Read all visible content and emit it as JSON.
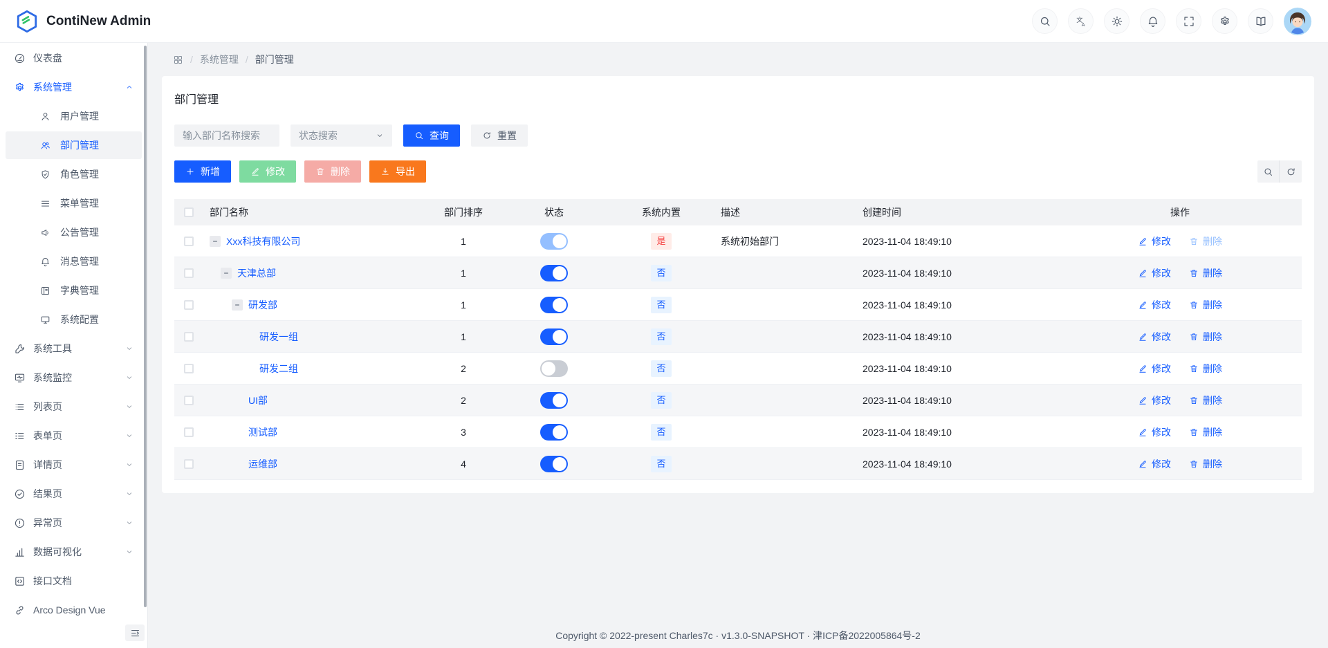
{
  "app": {
    "title": "ContiNew Admin"
  },
  "colors": {
    "primary": "#165dff",
    "primary_light": "#94bfff",
    "success_light": "#7edba0",
    "danger_light": "#f5aba6",
    "orange": "#f9781d",
    "badge_yes_bg": "#ffece8",
    "badge_yes_text": "#f53f3f",
    "badge_no_bg": "#e8f3ff",
    "toggle_off": "#c9cdd4"
  },
  "header": {
    "icon_buttons": [
      {
        "key": "search",
        "icon": "search"
      },
      {
        "key": "translate",
        "icon": "translate"
      },
      {
        "key": "theme",
        "icon": "sun"
      },
      {
        "key": "notifications",
        "icon": "bell"
      },
      {
        "key": "fullscreen",
        "icon": "fullscreen"
      },
      {
        "key": "settings",
        "icon": "gear"
      },
      {
        "key": "docs",
        "icon": "book"
      }
    ]
  },
  "sidebar": {
    "items": [
      {
        "key": "dashboard",
        "icon": "dashboard",
        "label": "仪表盘",
        "type": "top"
      },
      {
        "key": "system-management",
        "icon": "gear",
        "label": "系统管理",
        "type": "top",
        "chevron": "up",
        "active": true
      },
      {
        "key": "user-management",
        "icon": "user",
        "label": "用户管理",
        "type": "sub"
      },
      {
        "key": "department-management",
        "icon": "user-group",
        "label": "部门管理",
        "type": "sub",
        "selected": true
      },
      {
        "key": "role-management",
        "icon": "shield",
        "label": "角色管理",
        "type": "sub"
      },
      {
        "key": "menu-management",
        "icon": "menu-lines",
        "label": "菜单管理",
        "type": "sub"
      },
      {
        "key": "announcement-management",
        "icon": "megaphone",
        "label": "公告管理",
        "type": "sub"
      },
      {
        "key": "message-management",
        "icon": "bell",
        "label": "消息管理",
        "type": "sub"
      },
      {
        "key": "dict-management",
        "icon": "dict",
        "label": "字典管理",
        "type": "sub"
      },
      {
        "key": "system-config",
        "icon": "monitor",
        "label": "系统配置",
        "type": "sub"
      },
      {
        "key": "system-tools",
        "icon": "wrench",
        "label": "系统工具",
        "type": "top",
        "chevron": "down"
      },
      {
        "key": "system-monitor",
        "icon": "monitor-pulse",
        "label": "系统监控",
        "type": "top",
        "chevron": "down"
      },
      {
        "key": "list-pages",
        "icon": "list",
        "label": "列表页",
        "type": "top",
        "chevron": "down"
      },
      {
        "key": "form-pages",
        "icon": "form",
        "label": "表单页",
        "type": "top",
        "chevron": "down"
      },
      {
        "key": "detail-pages",
        "icon": "file",
        "label": "详情页",
        "type": "top",
        "chevron": "down"
      },
      {
        "key": "result-pages",
        "icon": "check-circle",
        "label": "结果页",
        "type": "top",
        "chevron": "down"
      },
      {
        "key": "exception-pages",
        "icon": "warning-circle",
        "label": "异常页",
        "type": "top",
        "chevron": "down"
      },
      {
        "key": "data-visualization",
        "icon": "chart",
        "label": "数据可视化",
        "type": "top",
        "chevron": "down"
      },
      {
        "key": "api-docs",
        "icon": "api",
        "label": "接口文档",
        "type": "top"
      },
      {
        "key": "arco-design-vue",
        "icon": "link",
        "label": "Arco Design Vue",
        "type": "top"
      }
    ]
  },
  "breadcrumb": {
    "items": [
      {
        "label": "系统管理"
      },
      {
        "label": "部门管理",
        "current": true
      }
    ]
  },
  "panel": {
    "title": "部门管理",
    "filters": {
      "name_placeholder": "输入部门名称搜索",
      "status_placeholder": "状态搜索",
      "search_label": "查询",
      "reset_label": "重置"
    },
    "toolbar": {
      "add_label": "新增",
      "edit_label": "修改",
      "delete_label": "删除",
      "export_label": "导出"
    }
  },
  "table": {
    "columns": [
      "部门名称",
      "部门排序",
      "状态",
      "系统内置",
      "描述",
      "创建时间",
      "操作"
    ],
    "badge": {
      "yes": "是",
      "no": "否"
    },
    "action_labels": {
      "edit": "修改",
      "delete": "删除"
    },
    "rows": [
      {
        "name": "Xxx科技有限公司",
        "level": 0,
        "expandable": true,
        "sort": "1",
        "status": "on-light",
        "builtin": "yes",
        "desc": "系统初始部门",
        "created": "2023-11-04 18:49:10",
        "delete_disabled": true
      },
      {
        "name": "天津总部",
        "level": 1,
        "expandable": true,
        "sort": "1",
        "status": "on",
        "builtin": "no",
        "desc": "",
        "created": "2023-11-04 18:49:10"
      },
      {
        "name": "研发部",
        "level": 2,
        "expandable": true,
        "sort": "1",
        "status": "on",
        "builtin": "no",
        "desc": "",
        "created": "2023-11-04 18:49:10"
      },
      {
        "name": "研发一组",
        "level": 3,
        "expandable": false,
        "sort": "1",
        "status": "on",
        "builtin": "no",
        "desc": "",
        "created": "2023-11-04 18:49:10"
      },
      {
        "name": "研发二组",
        "level": 3,
        "expandable": false,
        "sort": "2",
        "status": "off",
        "builtin": "no",
        "desc": "",
        "created": "2023-11-04 18:49:10"
      },
      {
        "name": "UI部",
        "level": 2,
        "expandable": false,
        "sort": "2",
        "status": "on",
        "builtin": "no",
        "desc": "",
        "created": "2023-11-04 18:49:10"
      },
      {
        "name": "测试部",
        "level": 2,
        "expandable": false,
        "sort": "3",
        "status": "on",
        "builtin": "no",
        "desc": "",
        "created": "2023-11-04 18:49:10"
      },
      {
        "name": "运维部",
        "level": 2,
        "expandable": false,
        "sort": "4",
        "status": "on",
        "builtin": "no",
        "desc": "",
        "created": "2023-11-04 18:49:10"
      }
    ]
  },
  "footer": {
    "copyright": "Copyright © 2022-present Charles7c · v1.3.0-SNAPSHOT · 津ICP备2022005864号-2"
  }
}
